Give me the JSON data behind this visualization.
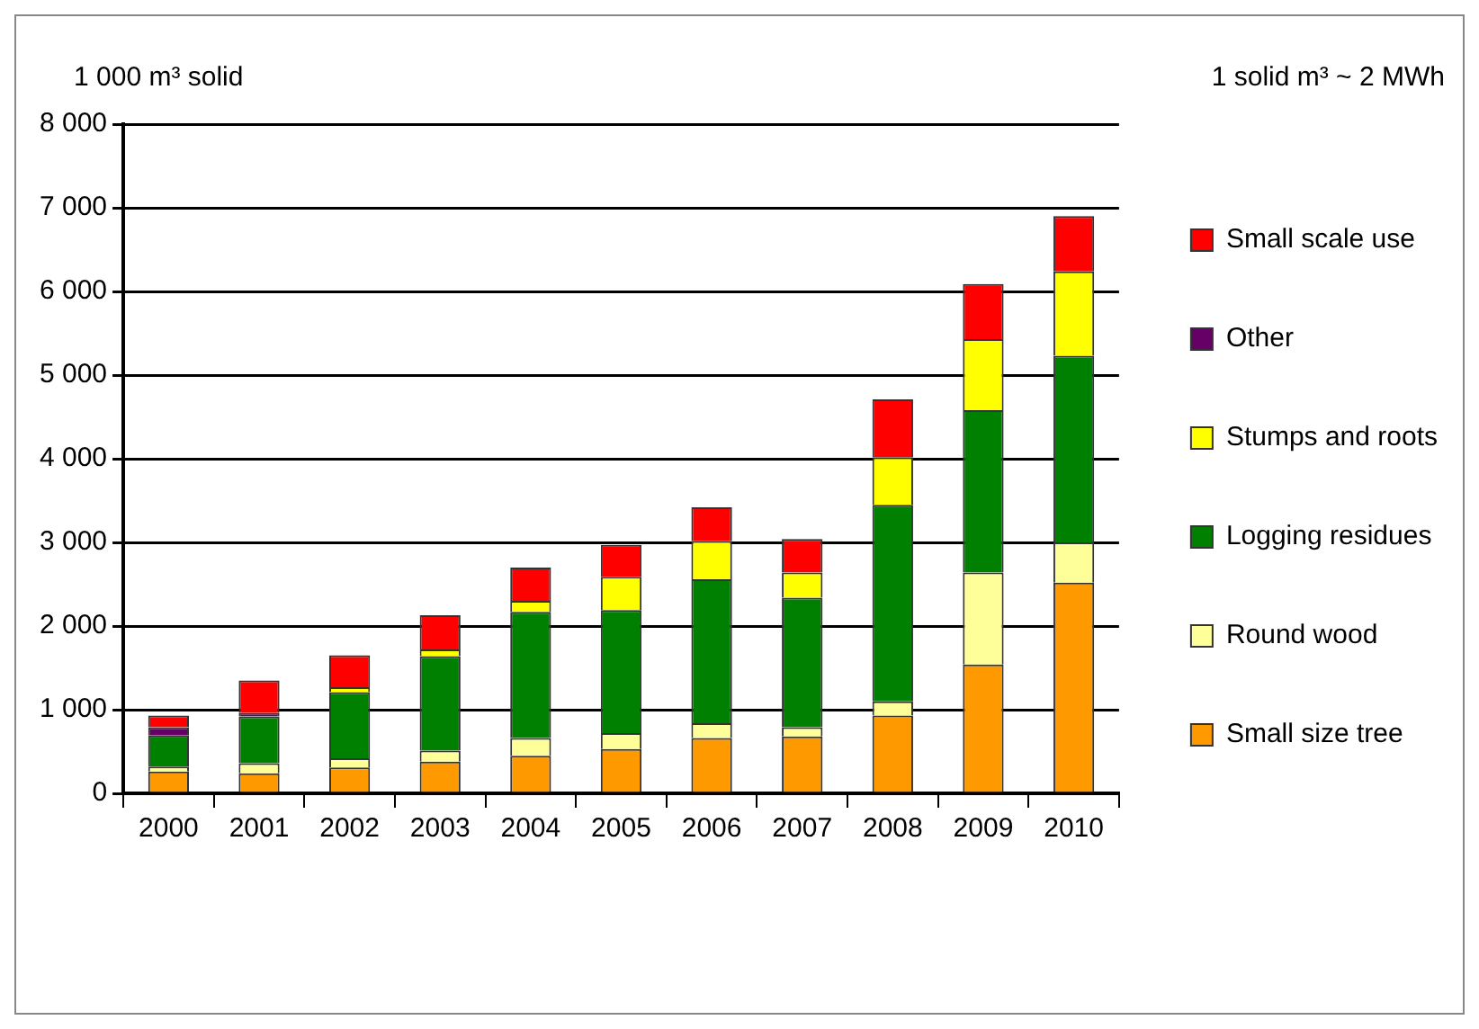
{
  "chart_data": {
    "type": "bar",
    "stacked": true,
    "ylabel": "1 000 m³ solid",
    "annotations": [
      "1 solid m³ ~ 2 MWh"
    ],
    "categories": [
      "2000",
      "2001",
      "2002",
      "2003",
      "2004",
      "2005",
      "2006",
      "2007",
      "2008",
      "2009",
      "2010"
    ],
    "series": [
      {
        "name": "Small size tree",
        "color": "#ff9900",
        "values": [
          260,
          240,
          310,
          380,
          450,
          530,
          660,
          680,
          930,
          1540,
          2520
        ]
      },
      {
        "name": "Round wood",
        "color": "#ffff99",
        "values": [
          60,
          120,
          110,
          130,
          210,
          190,
          180,
          110,
          170,
          1100,
          480
        ]
      },
      {
        "name": "Logging residues",
        "color": "#008000",
        "values": [
          370,
          560,
          790,
          1130,
          1510,
          1470,
          1720,
          1550,
          2350,
          1940,
          2230
        ]
      },
      {
        "name": "Stumps and roots",
        "color": "#ffff00",
        "values": [
          0,
          0,
          60,
          80,
          130,
          400,
          460,
          300,
          570,
          850,
          1010
        ]
      },
      {
        "name": "Other",
        "color": "#660066",
        "values": [
          100,
          40,
          0,
          0,
          0,
          0,
          0,
          0,
          0,
          0,
          0
        ]
      },
      {
        "name": "Small scale use",
        "color": "#ff0000",
        "values": [
          140,
          390,
          380,
          410,
          400,
          380,
          400,
          400,
          690,
          660,
          660
        ]
      }
    ],
    "ylim": [
      0,
      8000
    ],
    "yticks": [
      0,
      {
        "value": 1000,
        "label": "1 000"
      },
      {
        "value": 2000,
        "label": "2 000"
      },
      {
        "value": 3000,
        "label": "3 000"
      },
      {
        "value": 4000,
        "label": "4 000"
      },
      {
        "value": 5000,
        "label": "5 000"
      },
      {
        "value": 6000,
        "label": "6 000"
      },
      {
        "value": 7000,
        "label": "7 000"
      },
      {
        "value": 8000,
        "label": "8 000"
      }
    ],
    "grid": "y",
    "legend": "right"
  }
}
